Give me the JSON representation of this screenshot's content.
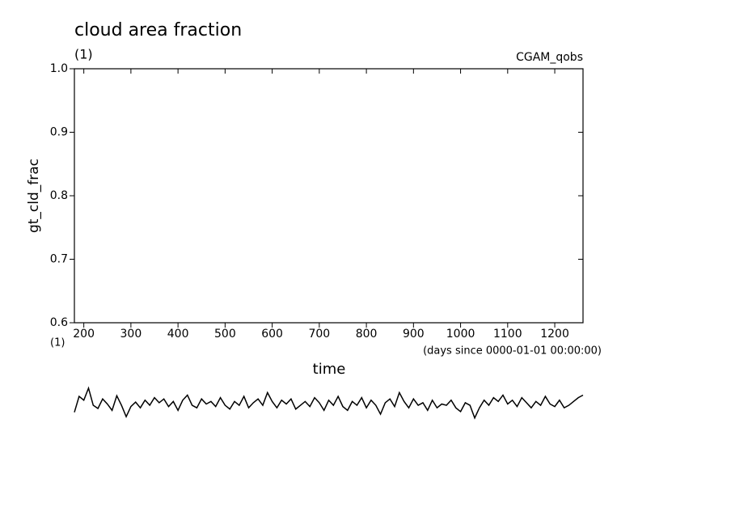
{
  "chart_data": {
    "type": "line",
    "title": "cloud area fraction",
    "subtitle": "(1)",
    "annotation": "CGAM_qobs",
    "ylabel": "gt_cld_frac",
    "yunit": "(1)",
    "xlabel": "time",
    "xunit": "(days since 0000-01-01 00:00:00)",
    "xlim": [
      180,
      1260
    ],
    "ylim": [
      0.6,
      1.0
    ],
    "xticks": [
      200,
      300,
      400,
      500,
      600,
      700,
      800,
      900,
      1000,
      1100,
      1200
    ],
    "yticks": [
      0.6,
      0.7,
      0.8,
      0.9,
      {
        "value": 1,
        "label": "1.0"
      }
    ],
    "x": [
      180,
      190,
      200,
      210,
      220,
      230,
      240,
      250,
      260,
      270,
      280,
      290,
      300,
      310,
      320,
      330,
      340,
      350,
      360,
      370,
      380,
      390,
      400,
      410,
      420,
      430,
      440,
      450,
      460,
      470,
      480,
      490,
      500,
      510,
      520,
      530,
      540,
      550,
      560,
      570,
      580,
      590,
      600,
      610,
      620,
      630,
      640,
      650,
      660,
      670,
      680,
      690,
      700,
      710,
      720,
      730,
      740,
      750,
      760,
      770,
      780,
      790,
      800,
      810,
      820,
      830,
      840,
      850,
      860,
      870,
      880,
      890,
      900,
      910,
      920,
      930,
      940,
      950,
      960,
      970,
      980,
      990,
      1000,
      1010,
      1020,
      1030,
      1040,
      1050,
      1060,
      1070,
      1080,
      1090,
      1100,
      1110,
      1120,
      1130,
      1140,
      1150,
      1160,
      1170,
      1180,
      1190,
      1200,
      1210,
      1220,
      1230,
      1240,
      1250,
      1260
    ],
    "series": [
      {
        "color": "#000000",
        "values": [
          0.459,
          0.484,
          0.478,
          0.497,
          0.47,
          0.465,
          0.48,
          0.472,
          0.462,
          0.485,
          0.47,
          0.452,
          0.468,
          0.475,
          0.466,
          0.478,
          0.47,
          0.482,
          0.474,
          0.48,
          0.468,
          0.476,
          0.462,
          0.478,
          0.486,
          0.47,
          0.466,
          0.48,
          0.472,
          0.476,
          0.468,
          0.482,
          0.47,
          0.464,
          0.476,
          0.47,
          0.484,
          0.466,
          0.474,
          0.48,
          0.47,
          0.49,
          0.476,
          0.466,
          0.478,
          0.472,
          0.48,
          0.464,
          0.47,
          0.476,
          0.468,
          0.482,
          0.474,
          0.462,
          0.478,
          0.47,
          0.484,
          0.468,
          0.462,
          0.476,
          0.47,
          0.482,
          0.466,
          0.478,
          0.47,
          0.456,
          0.474,
          0.48,
          0.468,
          0.49,
          0.476,
          0.466,
          0.48,
          0.47,
          0.474,
          0.462,
          0.478,
          0.466,
          0.472,
          0.47,
          0.478,
          0.466,
          0.46,
          0.474,
          0.47,
          0.45,
          0.466,
          0.478,
          0.47,
          0.482,
          0.476,
          0.486,
          0.472,
          0.478,
          0.468,
          0.482,
          0.474,
          0.466,
          0.476,
          0.47,
          0.484,
          0.472,
          0.468,
          0.478,
          0.466,
          0.47,
          0.476,
          0.482,
          0.486
        ]
      }
    ]
  }
}
